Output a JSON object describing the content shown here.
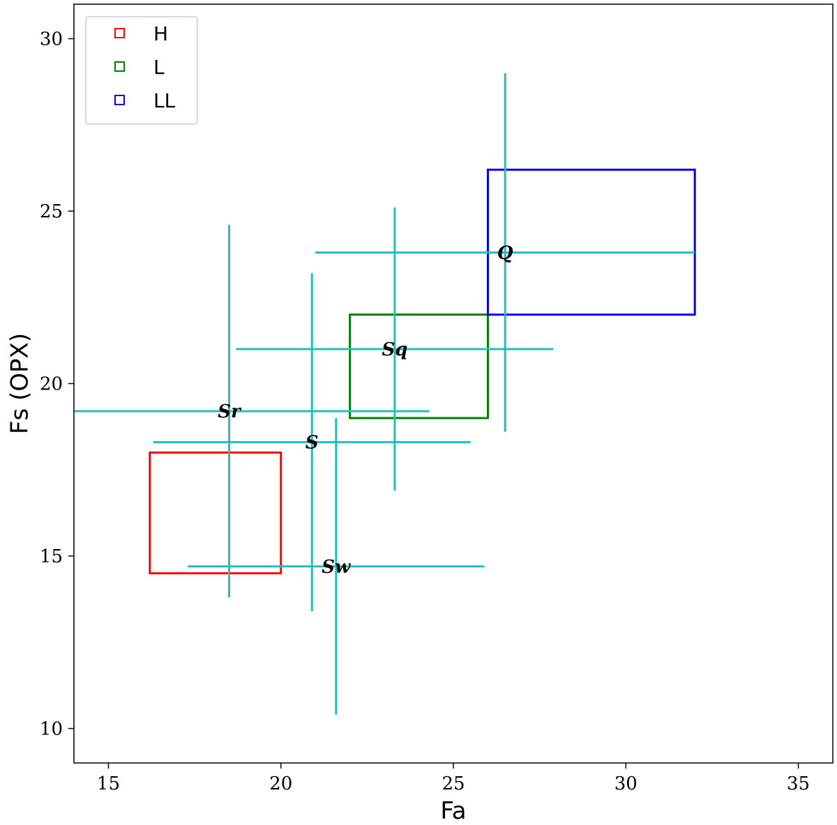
{
  "chart_data": {
    "type": "scatter",
    "xlabel": "Fa",
    "ylabel": "Fs (OPX)",
    "xlim": [
      14,
      36
    ],
    "ylim": [
      9,
      31
    ],
    "xticks": [
      15,
      20,
      25,
      30,
      35
    ],
    "yticks": [
      10,
      15,
      20,
      25,
      30
    ],
    "grid": false,
    "legend_position": "top-left",
    "regions": [
      {
        "name": "H",
        "color": "#ff0000",
        "x_range": [
          16.2,
          20.0
        ],
        "y_range": [
          14.5,
          18.0
        ]
      },
      {
        "name": "L",
        "color": "#008000",
        "x_range": [
          22.0,
          26.0
        ],
        "y_range": [
          19.0,
          22.0
        ]
      },
      {
        "name": "LL",
        "color": "#0000ff",
        "x_range": [
          26.0,
          32.0
        ],
        "y_range": [
          22.0,
          26.2
        ]
      }
    ],
    "points": [
      {
        "label": "Q",
        "x": 26.5,
        "y": 23.8,
        "x_range": [
          21.0,
          32.0
        ],
        "y_range": [
          18.6,
          29.0
        ]
      },
      {
        "label": "Sq",
        "x": 23.3,
        "y": 21.0,
        "x_range": [
          18.7,
          27.9
        ],
        "y_range": [
          16.9,
          25.1
        ]
      },
      {
        "label": "Sr",
        "x": 18.5,
        "y": 19.2,
        "x_range": [
          14.0,
          24.3
        ],
        "y_range": [
          13.8,
          24.6
        ]
      },
      {
        "label": "S",
        "x": 20.9,
        "y": 18.3,
        "x_range": [
          16.3,
          25.5
        ],
        "y_range": [
          13.4,
          23.2
        ]
      },
      {
        "label": "Sw",
        "x": 21.6,
        "y": 14.7,
        "x_range": [
          17.3,
          25.9
        ],
        "y_range": [
          10.4,
          19.0
        ]
      }
    ],
    "errorbar_color": "#1fbfbf"
  }
}
